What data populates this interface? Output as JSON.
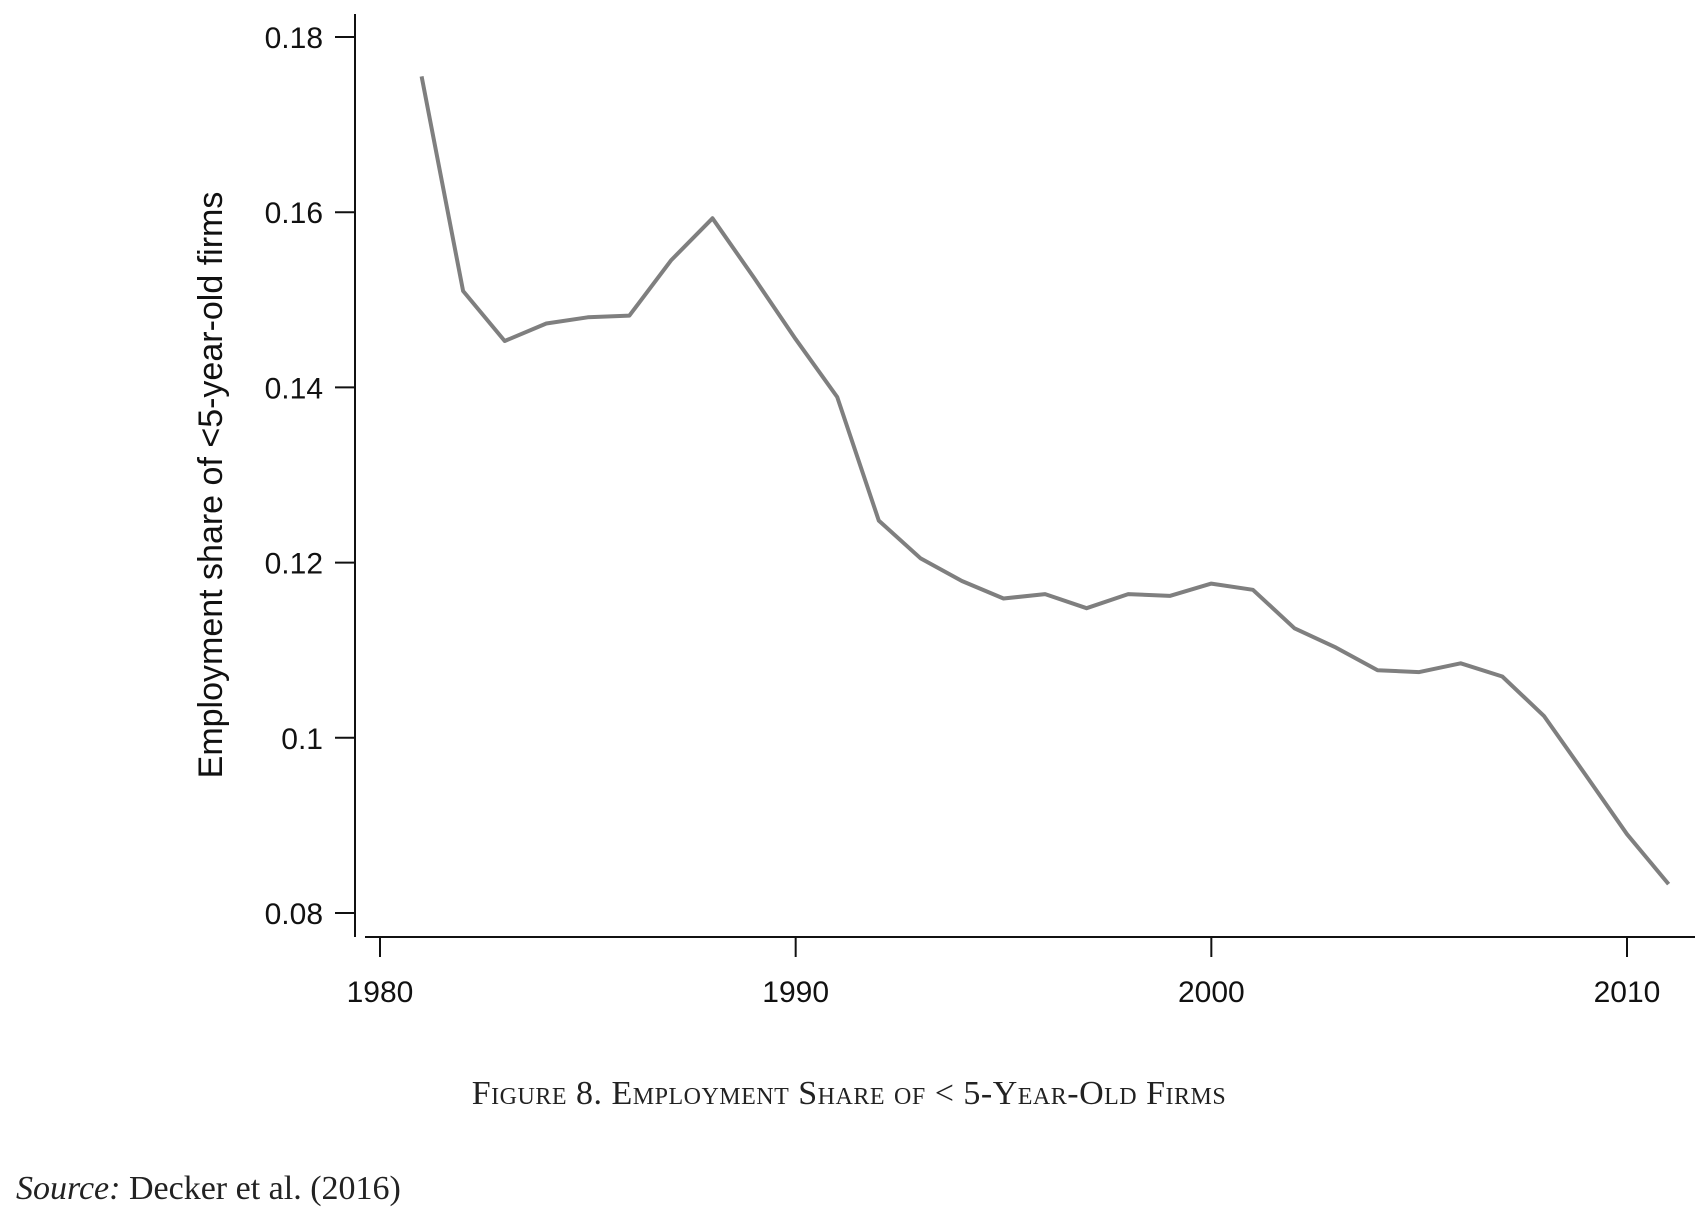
{
  "chart_data": {
    "type": "line",
    "ylabel": "Employment share of <5-year-old firms",
    "xlabel": "",
    "xlim": [
      1980,
      2012
    ],
    "ylim": [
      0.08,
      0.18
    ],
    "x_ticks": [
      1980,
      1990,
      2000,
      2010
    ],
    "x_tick_labels": [
      "1980",
      "1990",
      "2000",
      "2010"
    ],
    "y_ticks": [
      0.08,
      0.1,
      0.12,
      0.14,
      0.16,
      0.18
    ],
    "y_tick_labels": [
      "0.08",
      "0.1",
      "0.12",
      "0.14",
      "0.16",
      "0.18"
    ],
    "grid": false,
    "line_color": "#7f7f7f",
    "series": [
      {
        "x": [
          1981,
          1982,
          1983,
          1984,
          1985,
          1986,
          1987,
          1988,
          1989,
          1990,
          1991,
          1992,
          1993,
          1994,
          1995,
          1996,
          1997,
          1998,
          1999,
          2000,
          2001,
          2002,
          2003,
          2004,
          2005,
          2006,
          2007,
          2008,
          2009,
          2010,
          2011
        ],
        "values": [
          0.1755,
          0.151,
          0.1453,
          0.1473,
          0.148,
          0.1482,
          0.1545,
          0.1593,
          0.1525,
          0.1455,
          0.1389,
          0.1248,
          0.1205,
          0.1179,
          0.1159,
          0.1164,
          0.1148,
          0.1164,
          0.1162,
          0.1176,
          0.1169,
          0.1125,
          0.1103,
          0.1077,
          0.1075,
          0.1085,
          0.107,
          0.1025,
          0.0958,
          0.089,
          0.0833
        ]
      }
    ]
  },
  "caption": "Figure 8. Employment Share of < 5-Year-Old Firms",
  "source": {
    "label": "Source:",
    "text": " Decker et al. (2016)"
  }
}
